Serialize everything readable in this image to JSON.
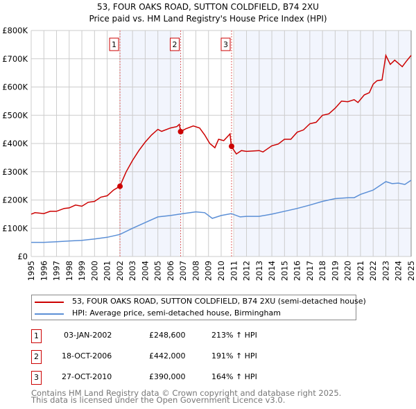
{
  "title_line1": "53, FOUR OAKS ROAD, SUTTON COLDFIELD, B74 2XU",
  "title_line2": "Price paid vs. HM Land Registry's House Price Index (HPI)",
  "chart_data": {
    "type": "line",
    "title": "53, FOUR OAKS ROAD, SUTTON COLDFIELD, B74 2XU — Price paid vs. HM Land Registry's House Price Index (HPI)",
    "xlim": [
      1995,
      2025
    ],
    "ylim": [
      0,
      800000
    ],
    "grid": true,
    "legend_placement": "below",
    "y_ticks": [
      {
        "v": 0,
        "label": "£0"
      },
      {
        "v": 100000,
        "label": "£100K"
      },
      {
        "v": 200000,
        "label": "£200K"
      },
      {
        "v": 300000,
        "label": "£300K"
      },
      {
        "v": 400000,
        "label": "£400K"
      },
      {
        "v": 500000,
        "label": "£500K"
      },
      {
        "v": 600000,
        "label": "£600K"
      },
      {
        "v": 700000,
        "label": "£700K"
      },
      {
        "v": 800000,
        "label": "£800K"
      }
    ],
    "x_ticks": [
      "1995",
      "1996",
      "1997",
      "1998",
      "1999",
      "2000",
      "2001",
      "2002",
      "2003",
      "2004",
      "2005",
      "2006",
      "2007",
      "2008",
      "2009",
      "2010",
      "2011",
      "2012",
      "2013",
      "2014",
      "2015",
      "2016",
      "2017",
      "2018",
      "2019",
      "2020",
      "2021",
      "2022",
      "2023",
      "2024",
      "2025"
    ],
    "series": [
      {
        "name": "53, FOUR OAKS ROAD, SUTTON COLDFIELD, B74 2XU (semi-detached house)",
        "color": "#cc0000",
        "x": [
          1995,
          1995.3,
          1996,
          1996.5,
          1997,
          1997.6,
          1998,
          1998.5,
          1999,
          1999.5,
          2000,
          2000.5,
          2001,
          2001.5,
          2002.0,
          2002.5,
          2003,
          2003.5,
          2004,
          2004.5,
          2005,
          2005.3,
          2006,
          2006.5,
          2006.7,
          2006.8,
          2007.2,
          2007.8,
          2008.3,
          2008.7,
          2009.1,
          2009.5,
          2009.8,
          2010.2,
          2010.7,
          2010.8,
          2011.2,
          2011.6,
          2012,
          2013,
          2013.3,
          2014,
          2014.5,
          2015,
          2015.5,
          2016,
          2016.5,
          2017,
          2017.5,
          2018,
          2018.5,
          2019,
          2019.5,
          2020,
          2020.5,
          2020.8,
          2021.3,
          2021.7,
          2022,
          2022.3,
          2022.7,
          2023.0,
          2023.35,
          2023.7,
          2024.3,
          2024.6,
          2025
        ],
        "y": [
          150000,
          155000,
          152000,
          160000,
          160000,
          170000,
          172000,
          182000,
          178000,
          192000,
          195000,
          210000,
          215000,
          235000,
          248600,
          300000,
          340000,
          375000,
          405000,
          430000,
          450000,
          443000,
          455000,
          460000,
          468000,
          442000,
          452000,
          462000,
          455000,
          430000,
          400000,
          385000,
          415000,
          410000,
          434000,
          390000,
          363000,
          375000,
          372000,
          375000,
          370000,
          392000,
          398000,
          415000,
          415000,
          440000,
          448000,
          470000,
          475000,
          500000,
          505000,
          525000,
          550000,
          548000,
          555000,
          545000,
          572000,
          580000,
          610000,
          622000,
          625000,
          712000,
          680000,
          695000,
          672000,
          690000,
          712000
        ]
      },
      {
        "name": "HPI: Average price, semi-detached house, Birmingham",
        "color": "#5b8fd6",
        "x": [
          1995,
          1996,
          1997,
          1998,
          1999,
          2000,
          2001,
          2002,
          2003,
          2004,
          2005,
          2006,
          2007,
          2008,
          2008.7,
          2009.3,
          2010,
          2010.8,
          2011.5,
          2012,
          2013,
          2014,
          2015,
          2016,
          2017,
          2018,
          2019,
          2020,
          2020.5,
          2021,
          2022,
          2022.5,
          2023,
          2023.5,
          2024,
          2024.5,
          2025
        ],
        "y": [
          50000,
          50000,
          52000,
          55000,
          57000,
          62000,
          68000,
          78000,
          100000,
          120000,
          140000,
          145000,
          152000,
          158000,
          155000,
          135000,
          145000,
          152000,
          140000,
          142000,
          142000,
          150000,
          160000,
          170000,
          182000,
          195000,
          205000,
          208000,
          208000,
          220000,
          235000,
          250000,
          265000,
          258000,
          260000,
          255000,
          270000
        ]
      }
    ],
    "sales": [
      {
        "id": "1",
        "x": 2002.01,
        "date": "03-JAN-2002",
        "price": 248600,
        "price_label": "£248,600",
        "hpi": "213% ↑ HPI"
      },
      {
        "id": "2",
        "x": 2006.8,
        "date": "18-OCT-2006",
        "price": 442000,
        "price_label": "£442,000",
        "hpi": "191% ↑ HPI"
      },
      {
        "id": "3",
        "x": 2010.82,
        "date": "27-OCT-2010",
        "price": 390000,
        "price_label": "£390,000",
        "hpi": "164% ↑ HPI"
      }
    ]
  },
  "footer_line1": "Contains HM Land Registry data © Crown copyright and database right 2025.",
  "footer_line2": "This data is licensed under the Open Government Licence v3.0."
}
